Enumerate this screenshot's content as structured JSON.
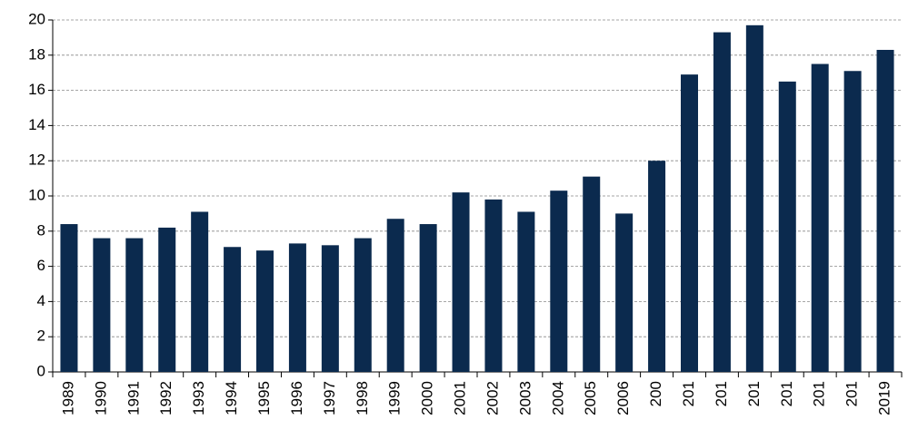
{
  "chart_data": {
    "type": "bar",
    "categories": [
      "1989",
      "1990",
      "1991",
      "1992",
      "1993",
      "1994",
      "1995",
      "1996",
      "1997",
      "1998",
      "1999",
      "2000",
      "2001",
      "2002",
      "2003",
      "2004",
      "2005",
      "2006",
      "200",
      "201",
      "201",
      "201",
      "201",
      "201",
      "201",
      "2019"
    ],
    "values": [
      8.4,
      7.6,
      7.6,
      8.2,
      9.1,
      7.1,
      6.9,
      7.3,
      7.2,
      7.6,
      8.7,
      8.4,
      10.2,
      9.8,
      9.1,
      10.3,
      11.1,
      9.0,
      12.0,
      16.9,
      19.3,
      19.7,
      16.5,
      17.5,
      17.1,
      18.3
    ],
    "color": "#0b2a4e",
    "ylim": [
      0,
      20
    ],
    "yticks": [
      0,
      2,
      4,
      6,
      8,
      10,
      12,
      14,
      16,
      18,
      20
    ],
    "grid": true
  }
}
